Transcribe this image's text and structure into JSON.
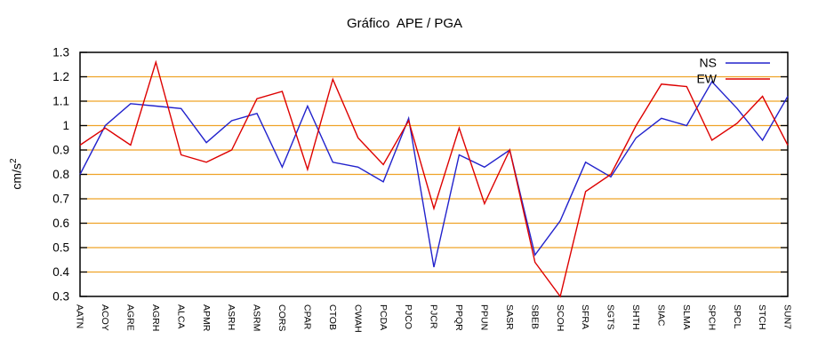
{
  "chart_data": {
    "type": "line",
    "title": "Gráfico  APE / PGA",
    "ylabel_base": "cm/s",
    "ylabel_exp": "2",
    "xlabel": "",
    "ylim": [
      0.3,
      1.3
    ],
    "ytick_values": [
      0.3,
      0.4,
      0.5,
      0.6,
      0.7,
      0.8,
      0.9,
      1.0,
      1.1,
      1.2,
      1.3
    ],
    "ytick_labels": [
      "0.3",
      "0.4",
      "0.5",
      "0.6",
      "0.7",
      "0.8",
      "0.9",
      "1",
      "1.1",
      "1.2",
      "1.3"
    ],
    "grid": "horizontal-only",
    "grid_color": "#efa327",
    "axis_color": "#000000",
    "legend_position": "top-right-inside",
    "categories": [
      "AATN",
      "ACOY",
      "AGRE",
      "AGRH",
      "ALCA",
      "APMR",
      "ASRH",
      "ASRM",
      "CORS",
      "CPAR",
      "CTOB",
      "CWAH",
      "PCDA",
      "PJCO",
      "PJCR",
      "PPQR",
      "PPUN",
      "SASR",
      "SBEB",
      "SCOH",
      "SFRA",
      "SGTS",
      "SHTH",
      "SIAC",
      "SLMA",
      "SPCH",
      "SPCL",
      "STCH",
      "SUN7"
    ],
    "series": [
      {
        "name": "NS",
        "color": "#2222cc",
        "values": [
          0.8,
          1.0,
          1.09,
          1.08,
          1.07,
          0.93,
          1.02,
          1.05,
          0.83,
          1.08,
          0.85,
          0.83,
          0.77,
          1.03,
          0.42,
          0.88,
          0.83,
          0.9,
          0.47,
          0.61,
          0.85,
          0.79,
          0.95,
          1.03,
          1.0,
          1.18,
          1.07,
          0.94,
          1.12
        ]
      },
      {
        "name": "EW",
        "color": "#dd0000",
        "values": [
          0.92,
          0.99,
          0.92,
          1.26,
          0.88,
          0.85,
          0.9,
          1.11,
          1.14,
          0.82,
          1.19,
          0.95,
          0.84,
          1.02,
          0.66,
          0.99,
          0.68,
          0.9,
          0.44,
          0.3,
          0.73,
          0.8,
          1.0,
          1.17,
          1.16,
          0.94,
          1.01,
          1.12,
          0.92
        ]
      }
    ]
  }
}
